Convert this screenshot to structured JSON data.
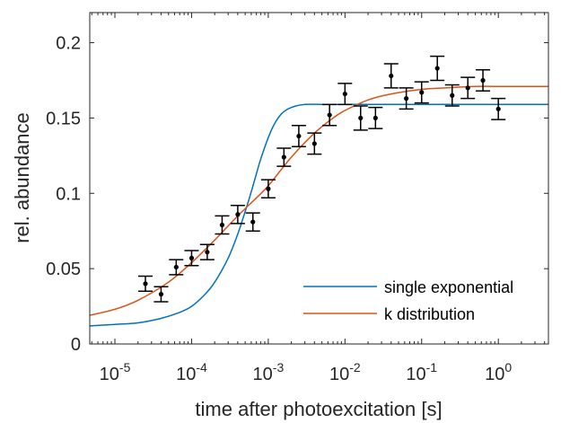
{
  "chart_data": {
    "type": "scatter",
    "title": "",
    "xlabel": "time after photoexcitation [s]",
    "ylabel": "rel. abundance",
    "xscale": "log",
    "xlim": [
      4.7e-06,
      4.5
    ],
    "ylim": [
      0,
      0.22
    ],
    "xticks": [
      1e-05,
      0.0001,
      0.001,
      0.01,
      0.1,
      1
    ],
    "xtick_labels": [
      {
        "base": "10",
        "exp": "-5"
      },
      {
        "base": "10",
        "exp": "-4"
      },
      {
        "base": "10",
        "exp": "-3"
      },
      {
        "base": "10",
        "exp": "-2"
      },
      {
        "base": "10",
        "exp": "-1"
      },
      {
        "base": "10",
        "exp": "0"
      }
    ],
    "yticks": [
      0,
      0.05,
      0.1,
      0.15,
      0.2
    ],
    "ytick_labels": [
      "0",
      "0.05",
      "0.1",
      "0.15",
      "0.2"
    ],
    "grid": false,
    "legend_position": "bottom-right",
    "series": [
      {
        "kind": "points_with_errorbars",
        "color": "#000000",
        "x": [
          2.5e-05,
          4e-05,
          6.3e-05,
          0.0001,
          0.00016,
          0.00025,
          0.0004,
          0.00063,
          0.001,
          0.0016,
          0.0025,
          0.004,
          0.0063,
          0.01,
          0.016,
          0.025,
          0.04,
          0.063,
          0.1,
          0.16,
          0.25,
          0.4,
          0.63,
          1.0
        ],
        "y": [
          0.04,
          0.033,
          0.051,
          0.057,
          0.061,
          0.079,
          0.086,
          0.081,
          0.103,
          0.124,
          0.138,
          0.133,
          0.152,
          0.166,
          0.15,
          0.15,
          0.178,
          0.163,
          0.167,
          0.183,
          0.165,
          0.17,
          0.175,
          0.156
        ],
        "yerr": [
          0.005,
          0.005,
          0.005,
          0.005,
          0.005,
          0.006,
          0.006,
          0.006,
          0.006,
          0.006,
          0.007,
          0.007,
          0.007,
          0.007,
          0.008,
          0.007,
          0.008,
          0.007,
          0.007,
          0.008,
          0.007,
          0.007,
          0.007,
          0.007
        ]
      },
      {
        "kind": "line",
        "name": "single exponential",
        "color": "#0072BD",
        "x": [
          4.7e-06,
          1e-05,
          2e-05,
          4e-05,
          7e-05,
          0.0001,
          0.00015,
          0.0002,
          0.0003,
          0.0004,
          0.0005,
          0.0006,
          0.0007,
          0.0008,
          0.001,
          0.0012,
          0.0015,
          0.002,
          0.003,
          0.005,
          0.01,
          0.1,
          1,
          4.5
        ],
        "y": [
          0.012,
          0.013,
          0.014,
          0.017,
          0.021,
          0.025,
          0.033,
          0.041,
          0.057,
          0.073,
          0.088,
          0.101,
          0.113,
          0.123,
          0.137,
          0.146,
          0.153,
          0.157,
          0.159,
          0.159,
          0.159,
          0.159,
          0.159,
          0.159
        ]
      },
      {
        "kind": "line",
        "name": "k distribution",
        "color": "#D95319",
        "x": [
          4.7e-06,
          1e-05,
          2e-05,
          5e-05,
          0.0001,
          0.0002,
          0.0004,
          0.0007,
          0.001,
          0.002,
          0.004,
          0.007,
          0.01,
          0.02,
          0.04,
          0.1,
          0.2,
          0.5,
          1,
          4.5
        ],
        "y": [
          0.019,
          0.023,
          0.029,
          0.041,
          0.054,
          0.069,
          0.085,
          0.097,
          0.105,
          0.124,
          0.14,
          0.15,
          0.155,
          0.162,
          0.166,
          0.169,
          0.17,
          0.171,
          0.171,
          0.171
        ]
      }
    ]
  }
}
